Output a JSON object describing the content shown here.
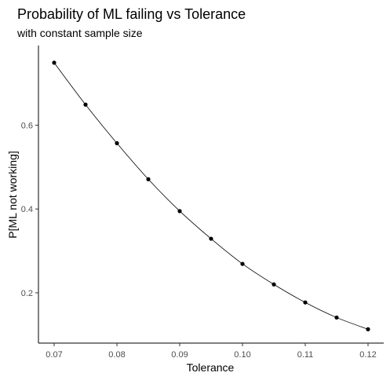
{
  "chart_data": {
    "type": "line",
    "title": "Probability of ML failing vs Tolerance",
    "subtitle": "with constant sample size",
    "xlabel": "Tolerance",
    "ylabel": "P[ML not working]",
    "xlim": [
      0.0675,
      0.1225
    ],
    "ylim": [
      0.08,
      0.79
    ],
    "x_ticks": [
      0.07,
      0.08,
      0.09,
      0.1,
      0.11,
      0.12
    ],
    "x_tick_labels": [
      "0.07",
      "0.08",
      "0.09",
      "0.10",
      "0.11",
      "0.12"
    ],
    "y_ticks": [
      0.2,
      0.4,
      0.6
    ],
    "y_tick_labels": [
      "0.2",
      "0.4",
      "0.6"
    ],
    "grid": false,
    "series": [
      {
        "x": [
          0.07,
          0.075,
          0.08,
          0.085,
          0.09,
          0.095,
          0.1,
          0.105,
          0.11,
          0.115,
          0.12
        ],
        "y": [
          0.749,
          0.649,
          0.557,
          0.471,
          0.395,
          0.329,
          0.269,
          0.22,
          0.177,
          0.141,
          0.113
        ],
        "markers": true,
        "color": "#000000"
      }
    ]
  }
}
